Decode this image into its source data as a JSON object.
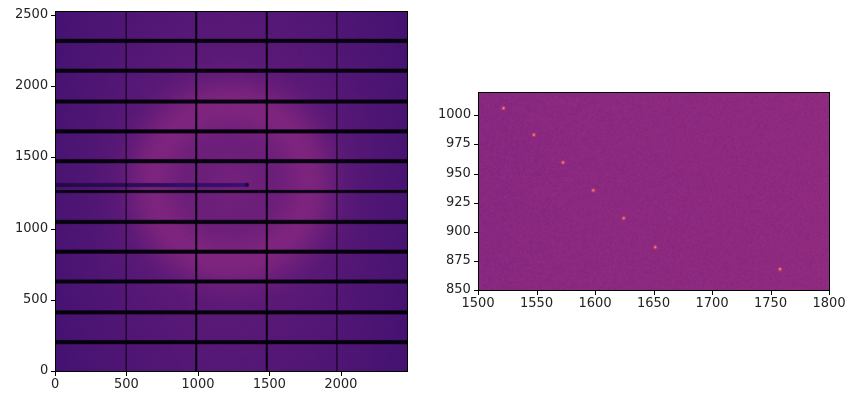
{
  "chart_data": [
    {
      "type": "heatmap",
      "colormap": "magma",
      "xlim": [
        0,
        2463
      ],
      "ylim": [
        0,
        2527
      ],
      "xticks": [
        0,
        500,
        1000,
        1500,
        2000
      ],
      "yticks": [
        0,
        500,
        1000,
        1500,
        2000,
        2500
      ],
      "module_gap_rows": [
        [
          195,
          212
        ],
        [
          407,
          424
        ],
        [
          619,
          636
        ],
        [
          831,
          848
        ],
        [
          1043,
          1060
        ],
        [
          1255,
          1272
        ],
        [
          1467,
          1484
        ],
        [
          1679,
          1696
        ],
        [
          1891,
          1908
        ],
        [
          2103,
          2120
        ],
        [
          2315,
          2332
        ]
      ],
      "module_gap_cols": [
        [
          487,
          494
        ],
        [
          981,
          988
        ],
        [
          1475,
          1482
        ],
        [
          1969,
          1976
        ]
      ],
      "ring": {
        "center": [
          1230,
          1320
        ],
        "radius": 560
      },
      "beamstop": {
        "y": 1310,
        "x_end": 1340
      }
    },
    {
      "type": "heatmap",
      "colormap": "magma",
      "xlim": [
        1500,
        1800
      ],
      "ylim": [
        850,
        1020
      ],
      "xticks": [
        1500,
        1550,
        1600,
        1650,
        1700,
        1750,
        1800
      ],
      "yticks": [
        850,
        875,
        900,
        925,
        950,
        975,
        1000
      ],
      "spots": [
        [
          1521,
          1007
        ],
        [
          1547,
          984
        ],
        [
          1572,
          960
        ],
        [
          1598,
          936
        ],
        [
          1624,
          912
        ],
        [
          1651,
          887
        ],
        [
          1758,
          868
        ]
      ]
    }
  ]
}
